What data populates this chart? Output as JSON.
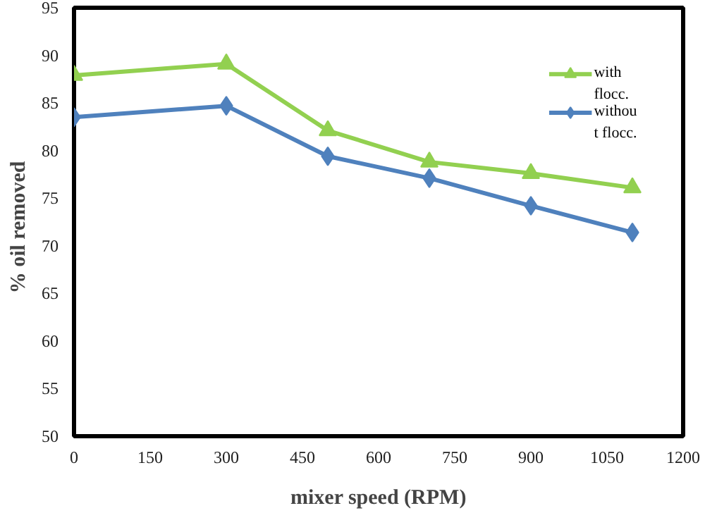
{
  "chart_data": {
    "type": "line",
    "xlabel": "mixer speed (RPM)",
    "ylabel": "%   oil removed",
    "x": [
      0,
      300,
      500,
      700,
      900,
      1100
    ],
    "series": [
      {
        "name": "with flocc.",
        "color": "#92d050",
        "marker": "triangle",
        "values": [
          87.9,
          89.1,
          82.1,
          78.8,
          77.6,
          76.1
        ]
      },
      {
        "name": "without flocc.",
        "color": "#4f81bd",
        "marker": "diamond",
        "values": [
          83.5,
          84.7,
          79.4,
          77.1,
          74.2,
          71.4
        ]
      }
    ],
    "xlim": [
      0,
      1200
    ],
    "xticks": [
      0,
      150,
      300,
      450,
      600,
      750,
      900,
      1050,
      1200
    ],
    "ylim": [
      50,
      95
    ],
    "yticks": [
      50,
      55,
      60,
      65,
      70,
      75,
      80,
      85,
      90,
      95
    ],
    "grid": false,
    "legend": "top right",
    "line_style": "solid"
  }
}
